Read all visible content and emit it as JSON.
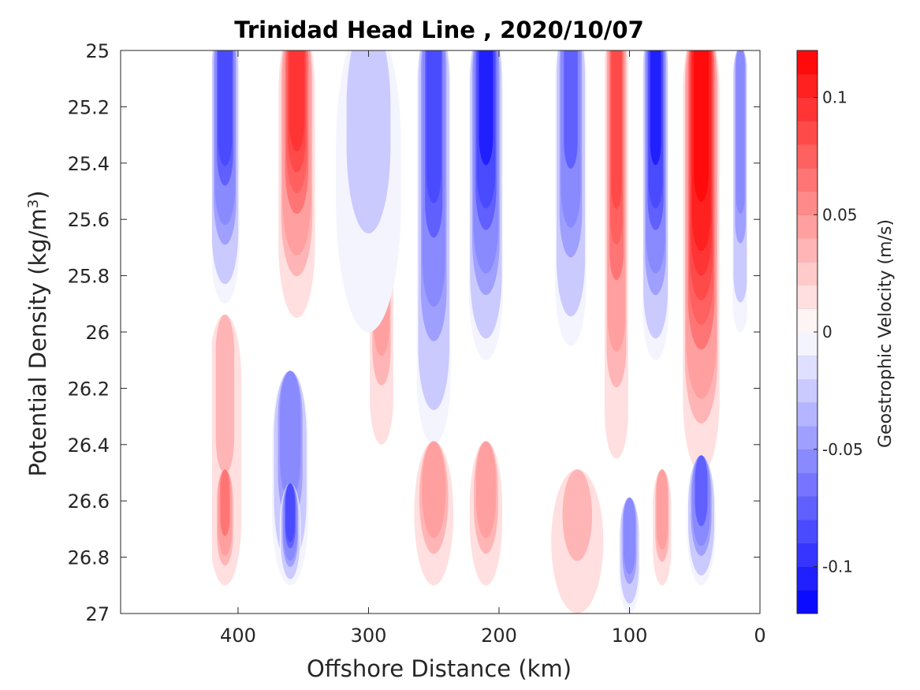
{
  "chart_data": {
    "type": "contour",
    "title": "Trinidad Head Line , 2020/10/07",
    "xlabel": "Offshore Distance (km)",
    "ylabel": "Potential Density (kg/m",
    "ylabel_superscript": "3",
    "ylabel_close": ")",
    "xlim": [
      490,
      0
    ],
    "x_reversed": true,
    "ylim": [
      25,
      27
    ],
    "y_reversed": true,
    "xticks": [
      400,
      300,
      200,
      100,
      0
    ],
    "yticks": [
      "25",
      "25.2",
      "25.4",
      "25.6",
      "25.8",
      "26",
      "26.2",
      "26.4",
      "26.6",
      "26.8",
      "27"
    ],
    "colorbar": {
      "label": "Geostrophic Velocity (m/s)",
      "range": [
        -0.12,
        0.12
      ],
      "levels": 24,
      "ticks": [
        {
          "value": 0.1,
          "label": "0.1"
        },
        {
          "value": 0.05,
          "label": "0.05"
        },
        {
          "value": 0,
          "label": "0"
        },
        {
          "value": -0.05,
          "label": "-0.05"
        },
        {
          "value": -0.1,
          "label": "-0.1"
        }
      ],
      "positive_color": "#ff0000",
      "negative_color": "#0000ff",
      "zero_color": "#ffffff"
    },
    "data_extent": {
      "x": [
        420,
        10
      ],
      "y": [
        25,
        26.9
      ]
    },
    "features": [
      {
        "x": 410,
        "y_top": 25.0,
        "y_bottom": 25.9,
        "width": 22,
        "v": -0.085
      },
      {
        "x": 355,
        "y_top": 25.0,
        "y_bottom": 25.95,
        "width": 28,
        "v": 0.085
      },
      {
        "x": 410,
        "y_top": 26.05,
        "y_bottom": 26.9,
        "width": 25,
        "v": 0.03
      },
      {
        "x": 410,
        "y_top": 26.6,
        "y_bottom": 26.9,
        "width": 16,
        "v": 0.06
      },
      {
        "x": 360,
        "y_top": 26.25,
        "y_bottom": 26.9,
        "width": 28,
        "v": -0.06
      },
      {
        "x": 360,
        "y_top": 26.65,
        "y_bottom": 26.9,
        "width": 16,
        "v": -0.08
      },
      {
        "x": 290,
        "y_top": 25.5,
        "y_bottom": 26.4,
        "width": 18,
        "v": 0.06
      },
      {
        "x": 300,
        "y_top": 25.0,
        "y_bottom": 26.0,
        "width": 50,
        "v": -0.015
      },
      {
        "x": 250,
        "y_top": 25.0,
        "y_bottom": 26.4,
        "width": 26,
        "v": -0.075
      },
      {
        "x": 210,
        "y_top": 25.0,
        "y_bottom": 26.1,
        "width": 26,
        "v": -0.1
      },
      {
        "x": 250,
        "y_top": 26.5,
        "y_bottom": 26.9,
        "width": 30,
        "v": 0.045
      },
      {
        "x": 210,
        "y_top": 26.5,
        "y_bottom": 26.9,
        "width": 25,
        "v": 0.05
      },
      {
        "x": 145,
        "y_top": 25.0,
        "y_bottom": 26.05,
        "width": 24,
        "v": -0.07
      },
      {
        "x": 140,
        "y_top": 26.6,
        "y_bottom": 27.0,
        "width": 40,
        "v": 0.03
      },
      {
        "x": 110,
        "y_top": 25.0,
        "y_bottom": 26.45,
        "width": 18,
        "v": 0.08
      },
      {
        "x": 80,
        "y_top": 25.0,
        "y_bottom": 26.1,
        "width": 20,
        "v": -0.1
      },
      {
        "x": 45,
        "y_top": 25.0,
        "y_bottom": 26.5,
        "width": 28,
        "v": 0.115
      },
      {
        "x": 15,
        "y_top": 25.1,
        "y_bottom": 26.0,
        "width": 12,
        "v": -0.06
      },
      {
        "x": 100,
        "y_top": 26.7,
        "y_bottom": 27.0,
        "width": 16,
        "v": -0.06
      },
      {
        "x": 75,
        "y_top": 26.6,
        "y_bottom": 26.9,
        "width": 14,
        "v": 0.045
      },
      {
        "x": 45,
        "y_top": 26.55,
        "y_bottom": 26.9,
        "width": 22,
        "v": -0.07
      }
    ]
  }
}
